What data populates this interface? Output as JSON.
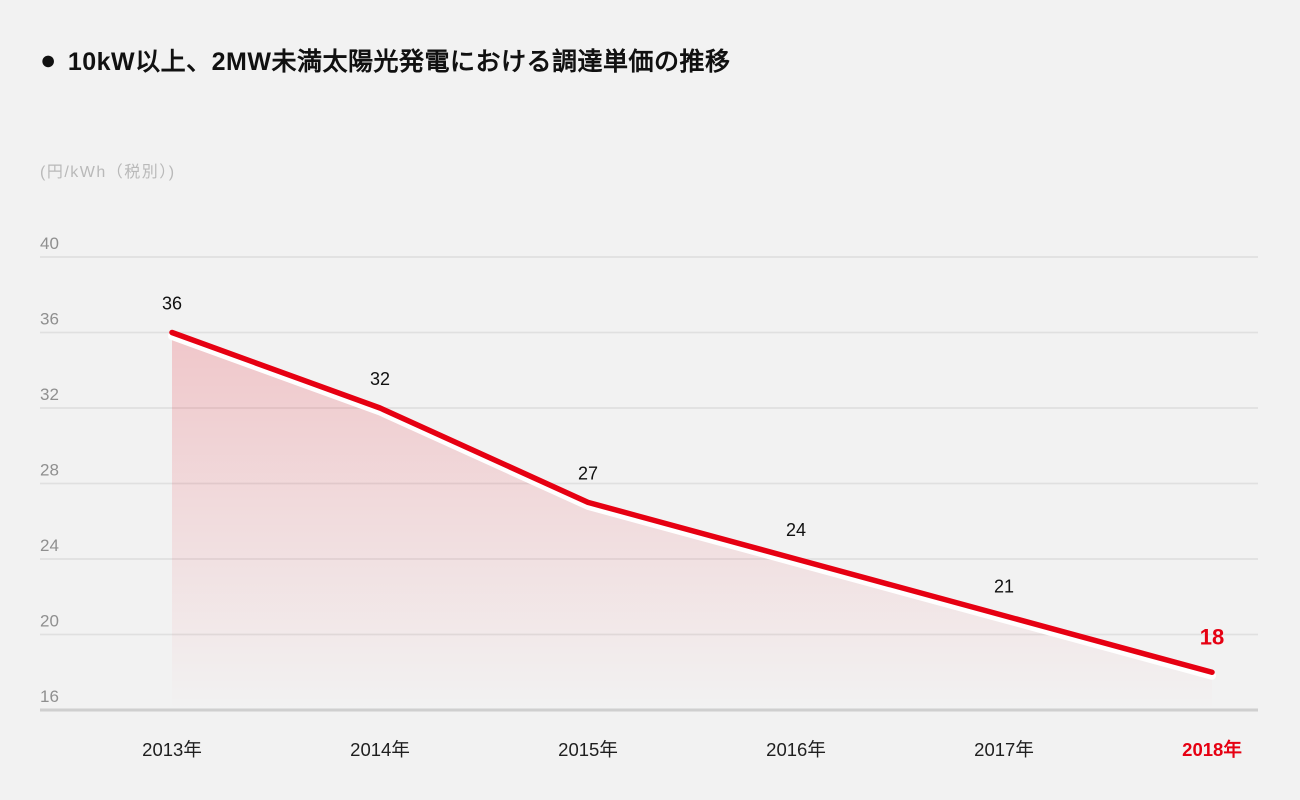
{
  "header": {
    "bullet": "●",
    "title": "10kW以上、2MW未満太陽光発電における調達単価の推移"
  },
  "chart_data": {
    "type": "area",
    "title": "10kW以上、2MW未満太陽光発電における調達単価の推移",
    "unit_label": "(円/kWh（税別）)",
    "categories": [
      "2013年",
      "2014年",
      "2015年",
      "2016年",
      "2017年",
      "2018年"
    ],
    "values": [
      36,
      32,
      27,
      24,
      21,
      18
    ],
    "yticks": [
      40,
      36,
      32,
      28,
      24,
      20,
      16
    ],
    "ylim": [
      16,
      40
    ],
    "xlabel": "",
    "ylabel": "円/kWh（税別）",
    "grid": true,
    "legend": "none",
    "highlight_last": {
      "category": "2018年",
      "value": 18
    },
    "colors": {
      "background": "#f2f2f2",
      "line": "#e60012",
      "accent": "#e60012",
      "area_fill_rgb": "230,0,18",
      "area_top_opacity": 0.18,
      "gridline": "#e0e0e0",
      "axis_line": "#cfcfcf",
      "tick_label": "#8f8f8f",
      "unit_label": "#b9b9b9",
      "category_label": "#1f1f1f",
      "value_label": "#111111",
      "halo": "#ffffff"
    }
  }
}
